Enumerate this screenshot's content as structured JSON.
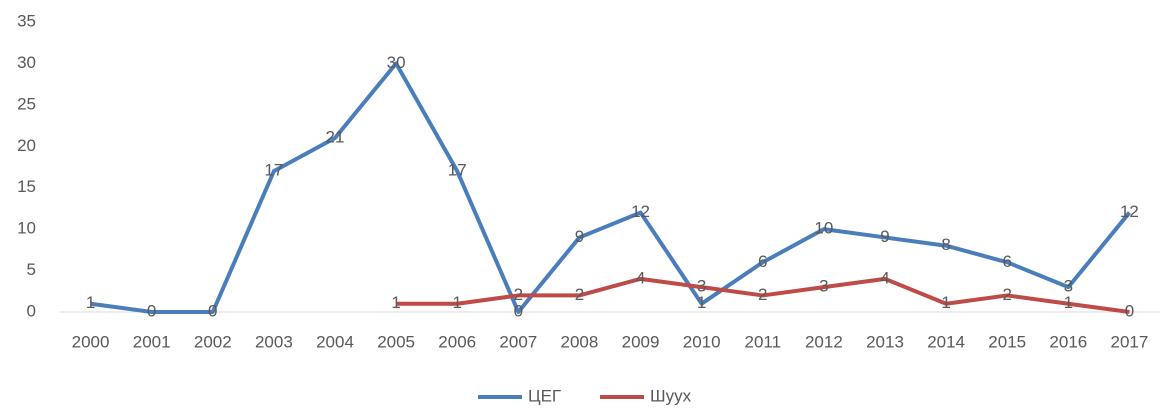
{
  "chart_data": {
    "type": "line",
    "categories": [
      "2000",
      "2001",
      "2002",
      "2003",
      "2004",
      "2005",
      "2006",
      "2007",
      "2008",
      "2009",
      "2010",
      "2011",
      "2012",
      "2013",
      "2014",
      "2015",
      "2016",
      "2017"
    ],
    "series": [
      {
        "name": "ЦЕГ",
        "color": "#4a7ebb",
        "values": [
          1,
          0,
          0,
          17,
          21,
          30,
          17,
          0,
          9,
          12,
          1,
          6,
          10,
          9,
          8,
          6,
          3,
          12
        ]
      },
      {
        "name": "Шуух",
        "color": "#be4b48",
        "values": [
          null,
          null,
          null,
          null,
          null,
          1,
          1,
          2,
          2,
          4,
          3,
          2,
          3,
          4,
          1,
          2,
          1,
          0
        ]
      }
    ],
    "ylim": [
      0,
      35
    ],
    "yticks": [
      0,
      5,
      10,
      15,
      20,
      25,
      30,
      35
    ],
    "grid": false,
    "legend": "bottom"
  }
}
